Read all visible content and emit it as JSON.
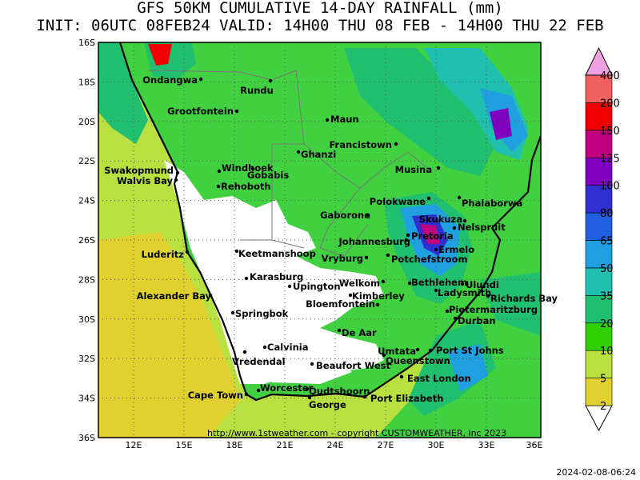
{
  "header": {
    "title": "GFS 50KM CUMULATIVE 14-DAY RAINFALL (mm)",
    "subtitle": "INIT: 06UTC 08FEB24  VALID: 14H00 THU 08 FEB - 14H00 THU 22 FEB"
  },
  "axes": {
    "lat": [
      "16S",
      "18S",
      "20S",
      "22S",
      "24S",
      "26S",
      "28S",
      "30S",
      "32S",
      "34S",
      "36S"
    ],
    "lon": [
      "12E",
      "15E",
      "18E",
      "21E",
      "24E",
      "27E",
      "30E",
      "33E",
      "36E"
    ]
  },
  "cities": [
    "Ondangwa",
    "Rundu",
    "Grootfontein",
    "Maun",
    "Francistown",
    "Ghanzi",
    "Swakopmund",
    "Walvis Bay",
    "Windhoek",
    "Gobabis",
    "Musina",
    "Rehoboth",
    "Polokwane",
    "Phalaborwa",
    "Gaborone",
    "Skukuza",
    "Nelspruit",
    "Pretoria",
    "Johannesburg",
    "Luderitz",
    "Keetmanshoop",
    "Ermelo",
    "Vryburg",
    "Potchefstroom",
    "Karasburg",
    "Welkom",
    "Bethlehem",
    "Ulundi",
    "Upington",
    "Ladysmith",
    "Alexander Bay",
    "Kimberley",
    "Richards Bay",
    "Bloemfontein",
    "Springbok",
    "Pietermaritzburg",
    "Durban",
    "De Aar",
    "Calvinia",
    "Umtata",
    "Port St Johns",
    "Vredendal",
    "Queenstown",
    "Beaufort West",
    "East London",
    "Worcester",
    "Oudtshoorn",
    "Cape Town",
    "Port Elizabeth",
    "George"
  ],
  "colorbar": {
    "labels": [
      2,
      5,
      10,
      20,
      35,
      50,
      65,
      80,
      100,
      125,
      150,
      200,
      400
    ],
    "colors": [
      "#ffffff",
      "#e0d030",
      "#b8e040",
      "#30d000",
      "#20c070",
      "#20c0b0",
      "#20a0e0",
      "#2060e0",
      "#3030d0",
      "#8000c0",
      "#c00080",
      "#f00000",
      "#f06060",
      "#f0a0e0"
    ]
  },
  "footer": {
    "credit": "http://www.1stweather.com - copyright CUSTOMWEATHER, inc 2023",
    "timestamp": "2024-02-08-06:24"
  }
}
